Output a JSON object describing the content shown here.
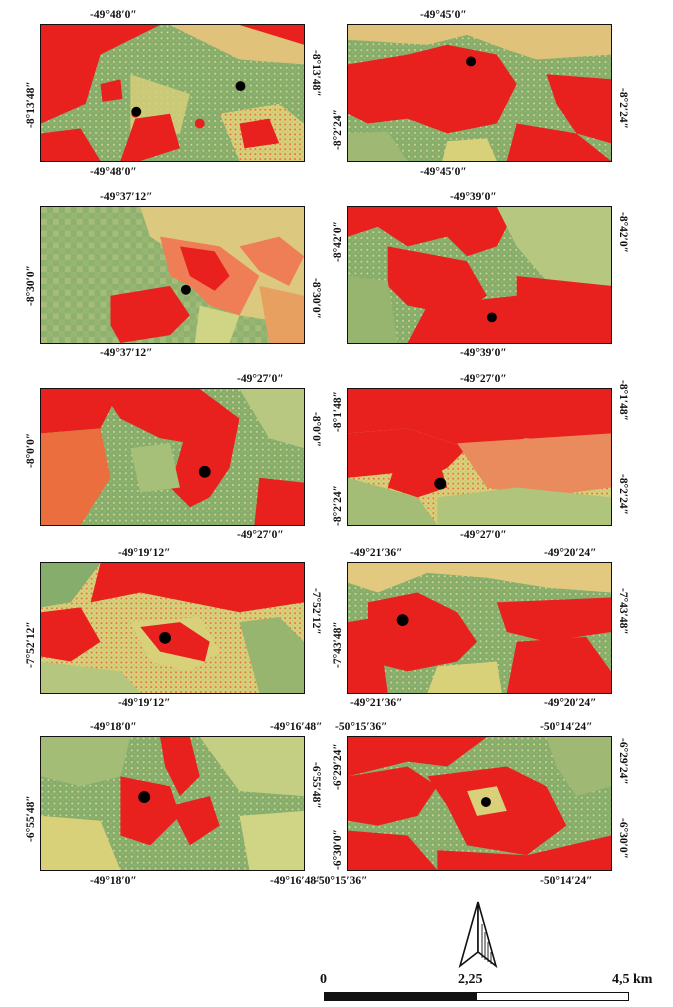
{
  "colors": {
    "red": "#e8211e",
    "green": "#7fa865",
    "yellow": "#e4e08a",
    "point": "#000000"
  },
  "panels": [
    {
      "id": "p1",
      "top": "-49°48′0″",
      "bottom": "-49°48′0″",
      "left": "-8°13′48″",
      "right": "-8°13′48″"
    },
    {
      "id": "p2",
      "top": "-49°45′0″",
      "bottom": "-49°45′0″",
      "left": "-8°2′24″",
      "right": "-8°2′24″"
    },
    {
      "id": "p3",
      "top": "-49°37′12″",
      "bottom": "-49°37′12″",
      "left": "-8°30′0″",
      "right": "-8°30′0″"
    },
    {
      "id": "p4",
      "top": "-49°39′0″",
      "bottom": "-49°39′0″",
      "left": "-8°42′0″",
      "right": "-8°42′0″"
    },
    {
      "id": "p5",
      "top": "-49°27′0″",
      "bottom": "-49°27′0″",
      "left": "-8°0′0″",
      "right": "-8°0′0″"
    },
    {
      "id": "p6",
      "top": "-49°27′0″",
      "bottom": "-49°27′0″",
      "left_top": "-8°1′48″",
      "left_bottom": "-8°2′24″",
      "right_top": "-8°1′48″",
      "right_bottom": "-8°2′24″"
    },
    {
      "id": "p7",
      "top": "-49°19′12″",
      "bottom": "-49°19′12″",
      "left": "-7°52′12″",
      "right": "-7°52′12″"
    },
    {
      "id": "p8",
      "top_left": "-49°21′36″",
      "top_right": "-49°20′24″",
      "bottom_left": "-49°21′36″",
      "bottom_right": "-49°20′24″",
      "left": "-7°43′48″",
      "right": "-7°43′48″"
    },
    {
      "id": "p9",
      "top_left": "-49°18′0″",
      "top_right": "-49°16′48″",
      "bottom_left": "-49°18′0″",
      "bottom_right": "-49°16′48″",
      "left": "-6°55′48″",
      "right": "-6°55′48″"
    },
    {
      "id": "p10",
      "top_left": "-50°15′36″",
      "top_right": "-50°14′24″",
      "bottom_left": "-50°15′36″",
      "bottom_right": "-50°14′24″",
      "left_top": "-6°29′24″",
      "left_bottom": "-6°30′0″",
      "right_top": "-6°29′24″",
      "right_bottom": "-6°30′0″"
    }
  ],
  "scale": {
    "zero": "0",
    "mid": "2,25",
    "max": "4,5 km"
  }
}
